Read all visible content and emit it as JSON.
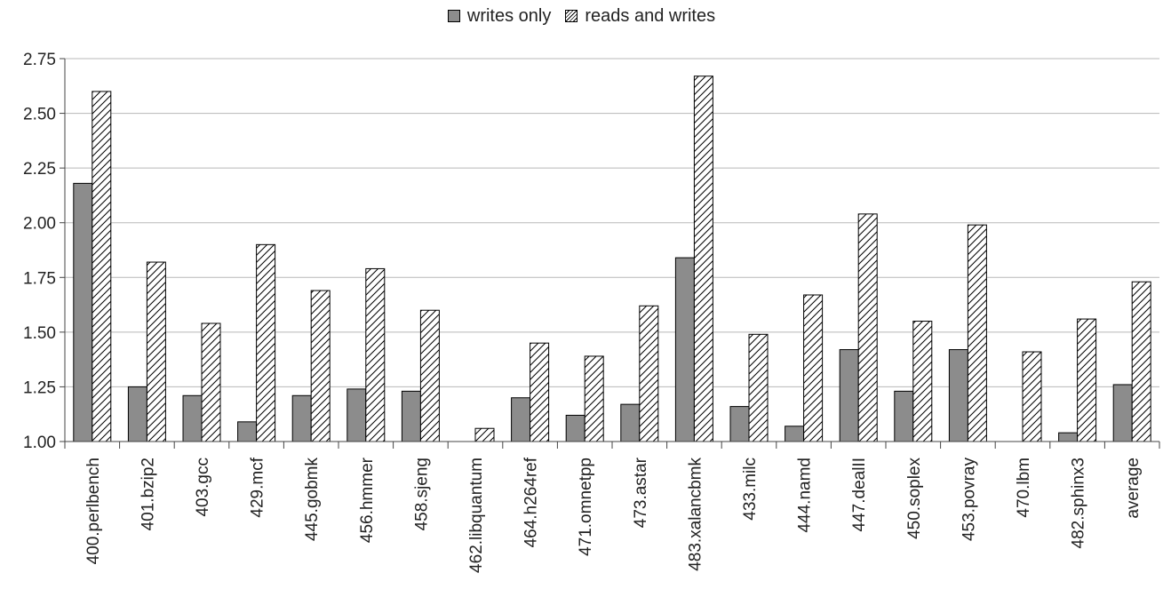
{
  "chart_data": {
    "type": "bar",
    "categories": [
      "400.perlbench",
      "401.bzip2",
      "403.gcc",
      "429.mcf",
      "445.gobmk",
      "456.hmmer",
      "458.sjeng",
      "462.libquantum",
      "464.h264ref",
      "471.omnetpp",
      "473.astar",
      "483.xalancbmk",
      "433.milc",
      "444.namd",
      "447.dealII",
      "450.soplex",
      "453.povray",
      "470.lbm",
      "482.sphinx3",
      "average"
    ],
    "series": [
      {
        "name": "writes only",
        "values": [
          2.18,
          1.25,
          1.21,
          1.09,
          1.21,
          1.24,
          1.23,
          null,
          1.2,
          1.12,
          1.17,
          1.84,
          1.16,
          1.07,
          1.42,
          1.23,
          1.42,
          null,
          1.04,
          1.26
        ],
        "color": "#8c8c8c"
      },
      {
        "name": "reads and writes",
        "values": [
          2.6,
          1.82,
          1.54,
          1.9,
          1.69,
          1.79,
          1.6,
          1.06,
          1.45,
          1.39,
          1.62,
          2.67,
          1.49,
          1.67,
          2.04,
          1.55,
          1.99,
          1.41,
          1.56,
          1.73
        ],
        "color": "hatched"
      }
    ],
    "yticks": [
      "1.00",
      "1.25",
      "1.50",
      "1.75",
      "2.00",
      "2.25",
      "2.50",
      "2.75"
    ],
    "ylim": [
      1.0,
      2.75
    ],
    "grid": true,
    "legend_position": "top-center"
  }
}
